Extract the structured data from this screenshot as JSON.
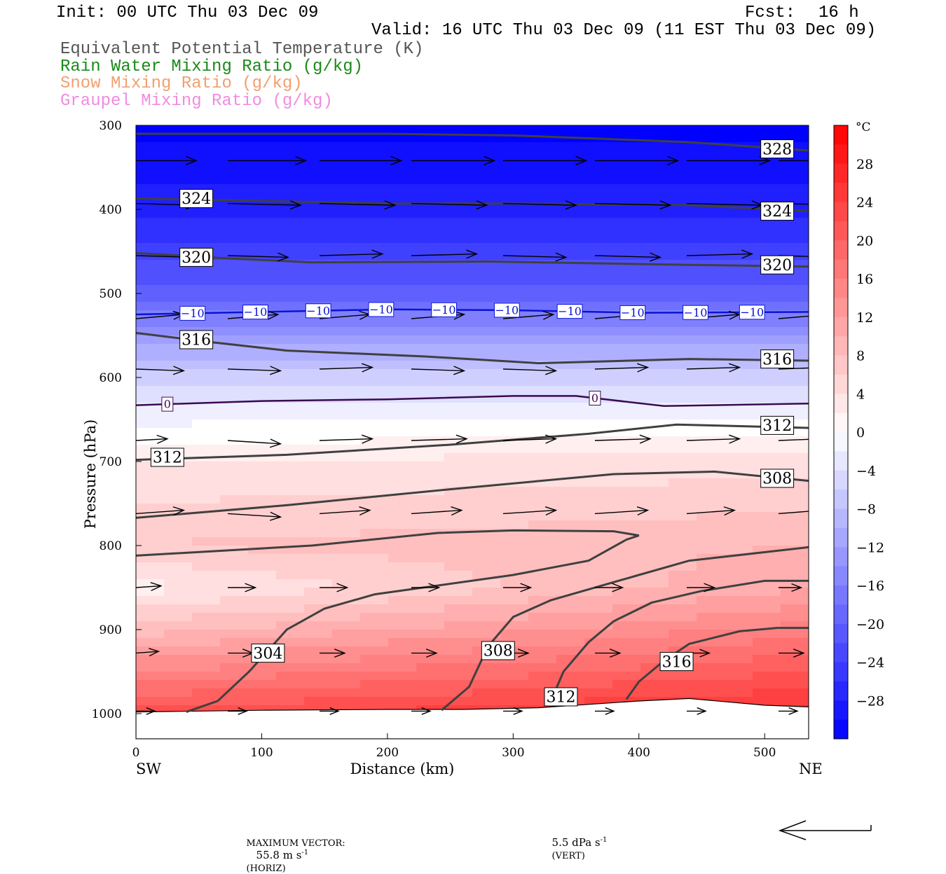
{
  "header": {
    "init": "Init: 00 UTC Thu 03 Dec 09",
    "fcst_label": "Fcst:",
    "fcst_value": "16 h",
    "valid": "Valid: 16 UTC Thu 03 Dec 09 (11 EST Thu 03 Dec 09)",
    "fields": [
      {
        "label": "Equivalent Potential Temperature (K)",
        "color": "#555555"
      },
      {
        "label": "Rain Water Mixing Ratio (g/kg)",
        "color": "#1a8a1a"
      },
      {
        "label": "Snow Mixing Ratio (g/kg)",
        "color": "#f0a070"
      },
      {
        "label": "Graupel Mixing Ratio (g/kg)",
        "color": "#f08ce0"
      }
    ]
  },
  "footer": {
    "vector_label": "MAXIMUM VECTOR:",
    "horiz_value": "55.8 m s",
    "horiz_exp": "-1",
    "horiz_unit": "(HORIZ)",
    "vert_value": "5.5 dPa s",
    "vert_exp": "-1",
    "vert_unit": "(VERT)"
  },
  "chart_data": {
    "type": "cross-section",
    "xlabel": "Distance (km)",
    "ylabel": "Pressure (hPa)",
    "xlim": [
      0,
      535
    ],
    "ylim": [
      1030,
      300
    ],
    "x_ticks": [
      0,
      100,
      200,
      300,
      400,
      500
    ],
    "y_ticks": [
      300,
      400,
      500,
      600,
      700,
      800,
      900,
      1000
    ],
    "left_end_label": "SW",
    "right_end_label": "NE",
    "colorbar": {
      "unit": "°C",
      "tick_labels": [
        "28",
        "24",
        "20",
        "16",
        "12",
        "8",
        "4",
        "0",
        "−4",
        "−8",
        "−12",
        "−16",
        "−20",
        "−24",
        "−28"
      ],
      "range": [
        -32,
        32
      ],
      "step": 2,
      "cold_color": "#0000ff",
      "warm_color": "#ff0000"
    },
    "temperature_field": {
      "description_levels_hpa": [
        300,
        400,
        500,
        600,
        700,
        800,
        850,
        900,
        950,
        1000
      ],
      "temp_c_sw": [
        -32,
        -28,
        -20,
        -6,
        3,
        7,
        2,
        8,
        15,
        22
      ],
      "temp_c_ne": [
        -32,
        -28,
        -20,
        -6,
        4,
        9,
        11,
        16,
        21,
        26
      ]
    },
    "isotherms": [
      {
        "label": "−10",
        "color": "#0a14d2",
        "points": [
          [
            0,
            525
          ],
          [
            100,
            522
          ],
          [
            200,
            519
          ],
          [
            300,
            520
          ],
          [
            400,
            523
          ],
          [
            535,
            522
          ]
        ],
        "label_x": [
          45,
          95,
          145,
          195,
          245,
          295,
          345,
          395,
          445,
          490
        ]
      },
      {
        "label": "0",
        "color": "#3c0a50",
        "points": [
          [
            0,
            633
          ],
          [
            100,
            628
          ],
          [
            200,
            626
          ],
          [
            300,
            622
          ],
          [
            350,
            622
          ],
          [
            420,
            634
          ],
          [
            535,
            631
          ]
        ],
        "label_x": [
          25,
          365
        ]
      }
    ],
    "theta_e_contours": [
      {
        "label": "328",
        "points": [
          [
            0,
            310
          ],
          [
            200,
            310
          ],
          [
            300,
            312
          ],
          [
            440,
            320
          ],
          [
            535,
            330
          ]
        ],
        "labels": [
          [
            510,
            328
          ]
        ]
      },
      {
        "label": "324",
        "points": [
          [
            0,
            387
          ],
          [
            200,
            393
          ],
          [
            300,
            393
          ],
          [
            440,
            395
          ],
          [
            535,
            402
          ]
        ],
        "labels": [
          [
            48,
            387
          ],
          [
            510,
            402
          ]
        ]
      },
      {
        "label": "320",
        "points": [
          [
            0,
            452
          ],
          [
            70,
            458
          ],
          [
            140,
            463
          ],
          [
            280,
            462
          ],
          [
            440,
            466
          ],
          [
            535,
            468
          ]
        ],
        "labels": [
          [
            48,
            457
          ],
          [
            510,
            466
          ]
        ]
      },
      {
        "label": "316",
        "points": [
          [
            0,
            547
          ],
          [
            60,
            558
          ],
          [
            120,
            568
          ],
          [
            230,
            575
          ],
          [
            320,
            583
          ],
          [
            440,
            578
          ],
          [
            535,
            580
          ]
        ],
        "labels": [
          [
            48,
            555
          ],
          [
            510,
            578
          ]
        ]
      },
      {
        "label": "312",
        "points": [
          [
            0,
            698
          ],
          [
            120,
            692
          ],
          [
            250,
            680
          ],
          [
            360,
            667
          ],
          [
            430,
            656
          ],
          [
            535,
            660
          ]
        ],
        "labels": [
          [
            25,
            695
          ],
          [
            510,
            657
          ]
        ]
      },
      {
        "label": "308",
        "points": [
          [
            0,
            767
          ],
          [
            120,
            752
          ],
          [
            250,
            733
          ],
          [
            380,
            715
          ],
          [
            460,
            712
          ],
          [
            535,
            723
          ]
        ],
        "labels": [
          [
            510,
            720
          ]
        ]
      },
      {
        "label": "",
        "points": [
          [
            0,
            812
          ],
          [
            140,
            800
          ],
          [
            240,
            785
          ],
          [
            300,
            782
          ],
          [
            380,
            783
          ],
          [
            400,
            788
          ],
          [
            390,
            793
          ],
          [
            360,
            818
          ],
          [
            300,
            835
          ],
          [
            190,
            858
          ],
          [
            150,
            875
          ],
          [
            120,
            900
          ],
          [
            90,
            950
          ],
          [
            65,
            985
          ],
          [
            40,
            998
          ]
        ],
        "labels": []
      },
      {
        "label": "304",
        "points": [],
        "labels": [
          [
            105,
            928
          ]
        ]
      },
      {
        "label": "",
        "points": [
          [
            535,
            802
          ],
          [
            440,
            818
          ],
          [
            400,
            835
          ],
          [
            330,
            865
          ],
          [
            300,
            885
          ],
          [
            280,
            920
          ],
          [
            265,
            968
          ],
          [
            243,
            996
          ]
        ],
        "labels": [
          [
            300,
            925
          ]
        ]
      },
      {
        "label": "",
        "points": [
          [
            535,
            842
          ],
          [
            500,
            842
          ],
          [
            450,
            854
          ],
          [
            410,
            868
          ],
          [
            380,
            890
          ],
          [
            360,
            915
          ],
          [
            340,
            950
          ],
          [
            330,
            985
          ]
        ],
        "labels": [
          [
            340,
            980
          ]
        ]
      },
      {
        "label": "",
        "points": [
          [
            535,
            898
          ],
          [
            510,
            898
          ],
          [
            480,
            902
          ],
          [
            440,
            917
          ],
          [
            420,
            937
          ],
          [
            400,
            962
          ],
          [
            390,
            983
          ]
        ],
        "labels": [
          [
            430,
            938
          ]
        ]
      }
    ],
    "contour_labels_extra": [
      {
        "label": "308",
        "x": 288,
        "y": 925
      },
      {
        "label": "312",
        "x": 338,
        "y": 980
      },
      {
        "label": "316",
        "x": 430,
        "y": 938
      }
    ],
    "terrain": {
      "points": [
        [
          0,
          998
        ],
        [
          100,
          996
        ],
        [
          200,
          995
        ],
        [
          260,
          995
        ],
        [
          320,
          993
        ],
        [
          400,
          985
        ],
        [
          440,
          982
        ],
        [
          500,
          990
        ],
        [
          535,
          992
        ]
      ]
    },
    "wind_vectors": {
      "rows_hpa": [
        342,
        393,
        455,
        530,
        590,
        675,
        762,
        850,
        928,
        997
      ],
      "x_km": [
        0,
        73,
        146,
        219,
        292,
        365,
        438,
        511
      ],
      "lengths_km": [
        [
          48,
          62,
          65,
          66,
          66,
          66,
          66,
          60
        ],
        [
          48,
          58,
          60,
          60,
          58,
          60,
          60,
          58
        ],
        [
          45,
          48,
          50,
          52,
          50,
          52,
          52,
          50
        ],
        [
          38,
          40,
          40,
          42,
          40,
          40,
          42,
          40
        ],
        [
          38,
          42,
          42,
          42,
          42,
          42,
          42,
          38
        ],
        [
          25,
          42,
          42,
          44,
          42,
          44,
          42,
          35
        ],
        [
          38,
          42,
          40,
          40,
          42,
          42,
          38,
          35
        ],
        [
          20,
          22,
          22,
          22,
          22,
          22,
          22,
          18
        ],
        [
          18,
          20,
          20,
          20,
          20,
          20,
          18,
          20
        ],
        [
          15,
          15,
          15,
          15,
          15,
          15,
          15,
          15
        ]
      ],
      "tilt_hpa": [
        [
          0,
          0,
          0,
          0,
          0,
          0,
          0,
          0
        ],
        [
          2,
          2,
          2,
          2,
          2,
          2,
          2,
          2
        ],
        [
          2,
          2,
          -2,
          -2,
          2,
          2,
          -2,
          2
        ],
        [
          -5,
          -5,
          -5,
          -5,
          -5,
          -5,
          -5,
          -5
        ],
        [
          2,
          2,
          -2,
          2,
          2,
          -2,
          -2,
          -2
        ],
        [
          -2,
          4,
          -2,
          -2,
          -2,
          -2,
          -2,
          -2
        ],
        [
          -4,
          4,
          -4,
          -4,
          -4,
          -4,
          -4,
          -4
        ],
        [
          -2,
          0,
          0,
          0,
          0,
          0,
          0,
          0
        ],
        [
          -2,
          0,
          0,
          0,
          0,
          0,
          0,
          0
        ],
        [
          0,
          0,
          0,
          0,
          0,
          0,
          0,
          0
        ]
      ]
    }
  }
}
